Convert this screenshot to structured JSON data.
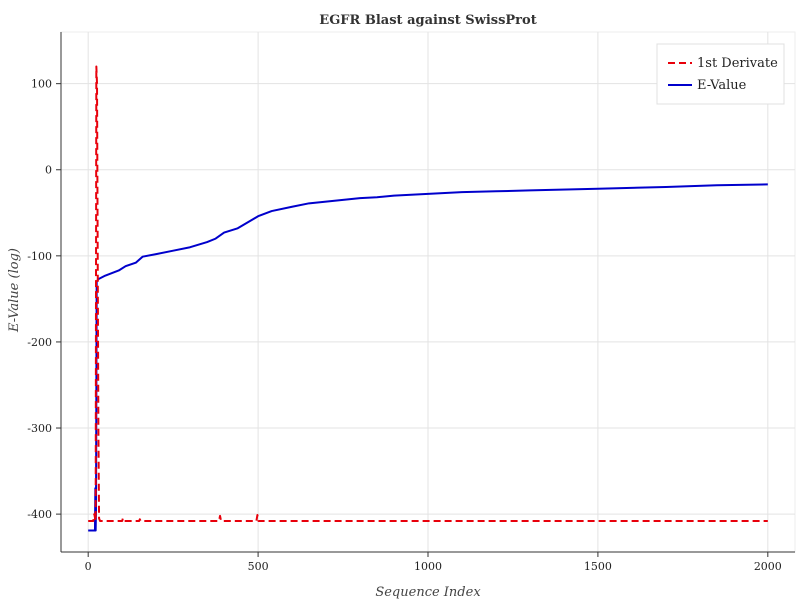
{
  "chart_data": {
    "type": "line",
    "title": "EGFR Blast against SwissProt",
    "xlabel": "Sequence Index",
    "ylabel": "E-Value (log)",
    "xlim": [
      -80,
      2080
    ],
    "ylim": [
      -444,
      160
    ],
    "x_ticks": [
      0,
      500,
      1000,
      1500,
      2000
    ],
    "y_ticks": [
      100,
      0,
      -100,
      -200,
      -300,
      -400
    ],
    "grid": true,
    "legend_position": "top-right",
    "series": [
      {
        "name": "1st Derivate",
        "color": "#e8000b",
        "style": "dashed",
        "points": [
          [
            0,
            -408
          ],
          [
            15,
            -408
          ],
          [
            18,
            -400
          ],
          [
            22,
            -408
          ],
          [
            24,
            120
          ],
          [
            26,
            100
          ],
          [
            28,
            -100
          ],
          [
            30,
            -300
          ],
          [
            32,
            -405
          ],
          [
            35,
            -408
          ],
          [
            100,
            -408
          ],
          [
            102,
            -405
          ],
          [
            104,
            -408
          ],
          [
            150,
            -408
          ],
          [
            152,
            -406
          ],
          [
            154,
            -408
          ],
          [
            385,
            -408
          ],
          [
            388,
            -402
          ],
          [
            391,
            -408
          ],
          [
            495,
            -408
          ],
          [
            498,
            -401
          ],
          [
            501,
            -408
          ],
          [
            2000,
            -408
          ]
        ]
      },
      {
        "name": "E-Value",
        "color": "#0000cc",
        "style": "solid",
        "points": [
          [
            0,
            -419
          ],
          [
            20,
            -419
          ],
          [
            21,
            -370
          ],
          [
            22,
            -419
          ],
          [
            23,
            -395
          ],
          [
            25,
            -130
          ],
          [
            30,
            -127
          ],
          [
            50,
            -123
          ],
          [
            70,
            -120
          ],
          [
            90,
            -117
          ],
          [
            110,
            -112
          ],
          [
            140,
            -108
          ],
          [
            160,
            -101
          ],
          [
            200,
            -98
          ],
          [
            250,
            -94
          ],
          [
            300,
            -90
          ],
          [
            350,
            -84
          ],
          [
            375,
            -80
          ],
          [
            400,
            -73
          ],
          [
            440,
            -68
          ],
          [
            470,
            -61
          ],
          [
            500,
            -54
          ],
          [
            540,
            -48
          ],
          [
            600,
            -43
          ],
          [
            650,
            -39
          ],
          [
            700,
            -37
          ],
          [
            750,
            -35
          ],
          [
            800,
            -33
          ],
          [
            850,
            -32
          ],
          [
            900,
            -30
          ],
          [
            1000,
            -28
          ],
          [
            1100,
            -26
          ],
          [
            1200,
            -25
          ],
          [
            1300,
            -24
          ],
          [
            1500,
            -22
          ],
          [
            1700,
            -20
          ],
          [
            1850,
            -18
          ],
          [
            2000,
            -17
          ]
        ]
      }
    ]
  }
}
